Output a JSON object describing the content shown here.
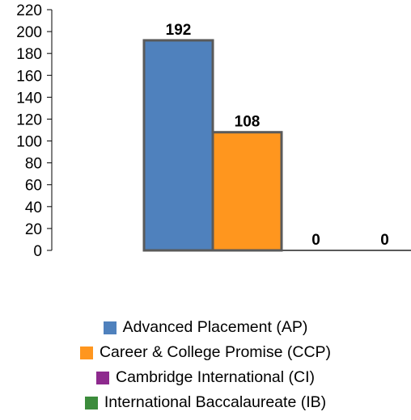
{
  "chart_data": {
    "type": "bar",
    "categories": [
      "Advanced Placement (AP)",
      "Career & College Promise (CCP)",
      "Cambridge International (CI)",
      "International Baccalaureate (IB)"
    ],
    "values": [
      192,
      108,
      0,
      0
    ],
    "colors": [
      "#4f81bd",
      "#ff961e",
      "#8e2a8e",
      "#3c8c3c"
    ],
    "bar_outline_color": "#5a5a5a",
    "title": "",
    "xlabel": "",
    "ylabel": "",
    "ylim": [
      0,
      220
    ],
    "yticks": [
      0,
      20,
      40,
      60,
      80,
      100,
      120,
      140,
      160,
      180,
      200,
      220
    ],
    "grid": false,
    "legend_position": "bottom"
  }
}
